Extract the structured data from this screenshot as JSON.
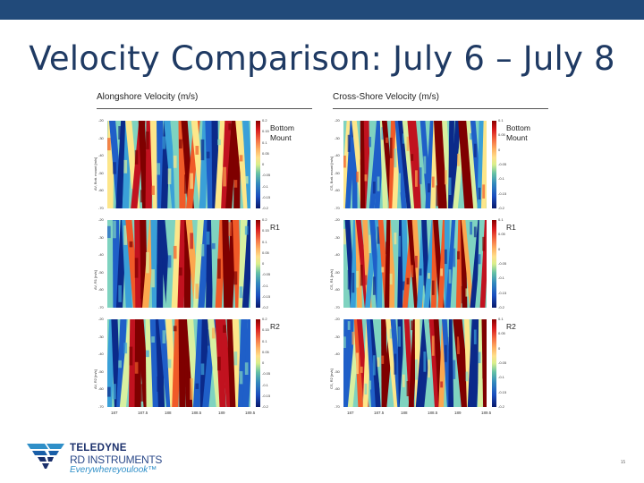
{
  "slide": {
    "title": "Velocity Comparison: July 6 – July 8",
    "page_number": "15",
    "colors": {
      "top_bar": "#214a7a",
      "title": "#1f3a63",
      "logo_tagline": "#2f8fc8"
    }
  },
  "columns": [
    {
      "title": "Alongshore Velocity (m/s)",
      "panels": [
        {
          "label": "Bottom Mount",
          "ylabel": "AV, Bott. mount [m/s]",
          "yticks": [
            "-20",
            "-30",
            "-40",
            "-50",
            "-60",
            "-70"
          ],
          "cbar_ticks": [
            "0.2",
            "0.15",
            "0.1",
            "0.05",
            "0",
            "-0.05",
            "-0.1",
            "-0.15",
            "-0.2"
          ],
          "stripe_count": 26
        },
        {
          "label": "R1",
          "ylabel": "AV, R1 [m/s]",
          "yticks": [
            "-20",
            "-30",
            "-40",
            "-50",
            "-60",
            "-70"
          ],
          "cbar_ticks": [
            "0.2",
            "0.15",
            "0.1",
            "0.05",
            "0",
            "-0.05",
            "-0.1",
            "-0.15",
            "-0.2"
          ],
          "stripe_count": 26
        },
        {
          "label": "R2",
          "ylabel": "AV, R2 [m/s]",
          "yticks": [
            "-20",
            "-30",
            "-40",
            "-50",
            "-60",
            "-70"
          ],
          "cbar_ticks": [
            "0.2",
            "0.15",
            "0.1",
            "0.05",
            "0",
            "-0.05",
            "-0.1",
            "-0.15",
            "-0.2"
          ],
          "stripe_count": 26
        }
      ],
      "xticks": [
        "187",
        "187.5",
        "188",
        "188.5",
        "189",
        "189.5"
      ]
    },
    {
      "title": "Cross-Shore Velocity (m/s)",
      "panels": [
        {
          "label": "Bottom Mount",
          "ylabel": "CS, Bott. mount [m/s]",
          "yticks": [
            "-20",
            "-30",
            "-40",
            "-50",
            "-60",
            "-70"
          ],
          "cbar_ticks": [
            "0.1",
            "0.05",
            "0",
            "-0.05",
            "-0.1",
            "-0.15",
            "-0.2"
          ],
          "stripe_count": 34
        },
        {
          "label": "R1",
          "ylabel": "CS, R1 [m/s]",
          "yticks": [
            "-20",
            "-30",
            "-40",
            "-50",
            "-60",
            "-70"
          ],
          "cbar_ticks": [
            "0.1",
            "0.05",
            "0",
            "-0.05",
            "-0.1",
            "-0.15",
            "-0.2"
          ],
          "stripe_count": 34
        },
        {
          "label": "R2",
          "ylabel": "CS, R2 [m/s]",
          "yticks": [
            "-20",
            "-30",
            "-40",
            "-50",
            "-60",
            "-70"
          ],
          "cbar_ticks": [
            "0.1",
            "0.05",
            "0",
            "-0.05",
            "-0.1",
            "-0.15",
            "-0.2"
          ],
          "stripe_count": 34
        }
      ],
      "xticks": [
        "187",
        "187.5",
        "188",
        "188.5",
        "189",
        "189.5"
      ]
    }
  ],
  "logo": {
    "company": "TELEDYNE",
    "division": "RD INSTRUMENTS",
    "tagline": "Everywhereyoulook™"
  }
}
